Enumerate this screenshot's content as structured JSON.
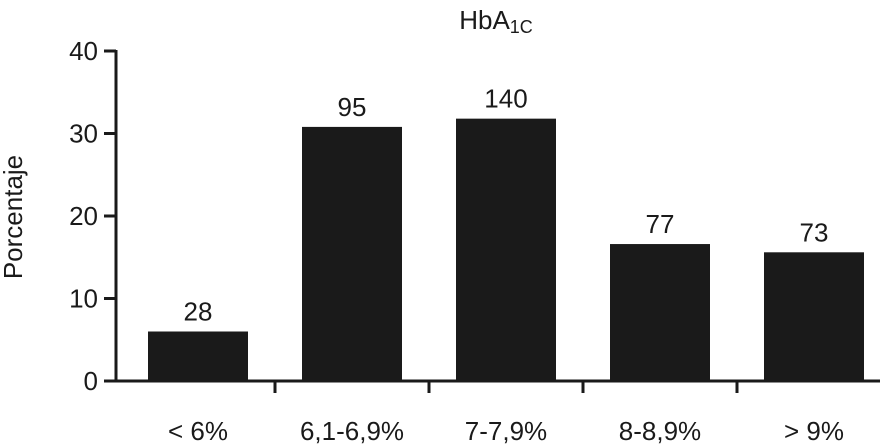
{
  "chart_data": {
    "type": "bar",
    "title_main": "HbA",
    "title_sub": "1C",
    "ylabel": "Porcentaje",
    "xlabel": "",
    "categories": [
      "< 6%",
      "6,1-6,9%",
      "7-7,9%",
      "8-8,9%",
      "> 9%"
    ],
    "values": [
      6,
      30.8,
      31.8,
      16.6,
      15.6
    ],
    "data_labels": [
      "28",
      "95",
      "140",
      "77",
      "73"
    ],
    "ylim": [
      0,
      40
    ],
    "yticks": [
      0,
      10,
      20,
      30,
      40
    ],
    "grid": false,
    "legend": "none",
    "bar_color": "#1a1a1a"
  }
}
